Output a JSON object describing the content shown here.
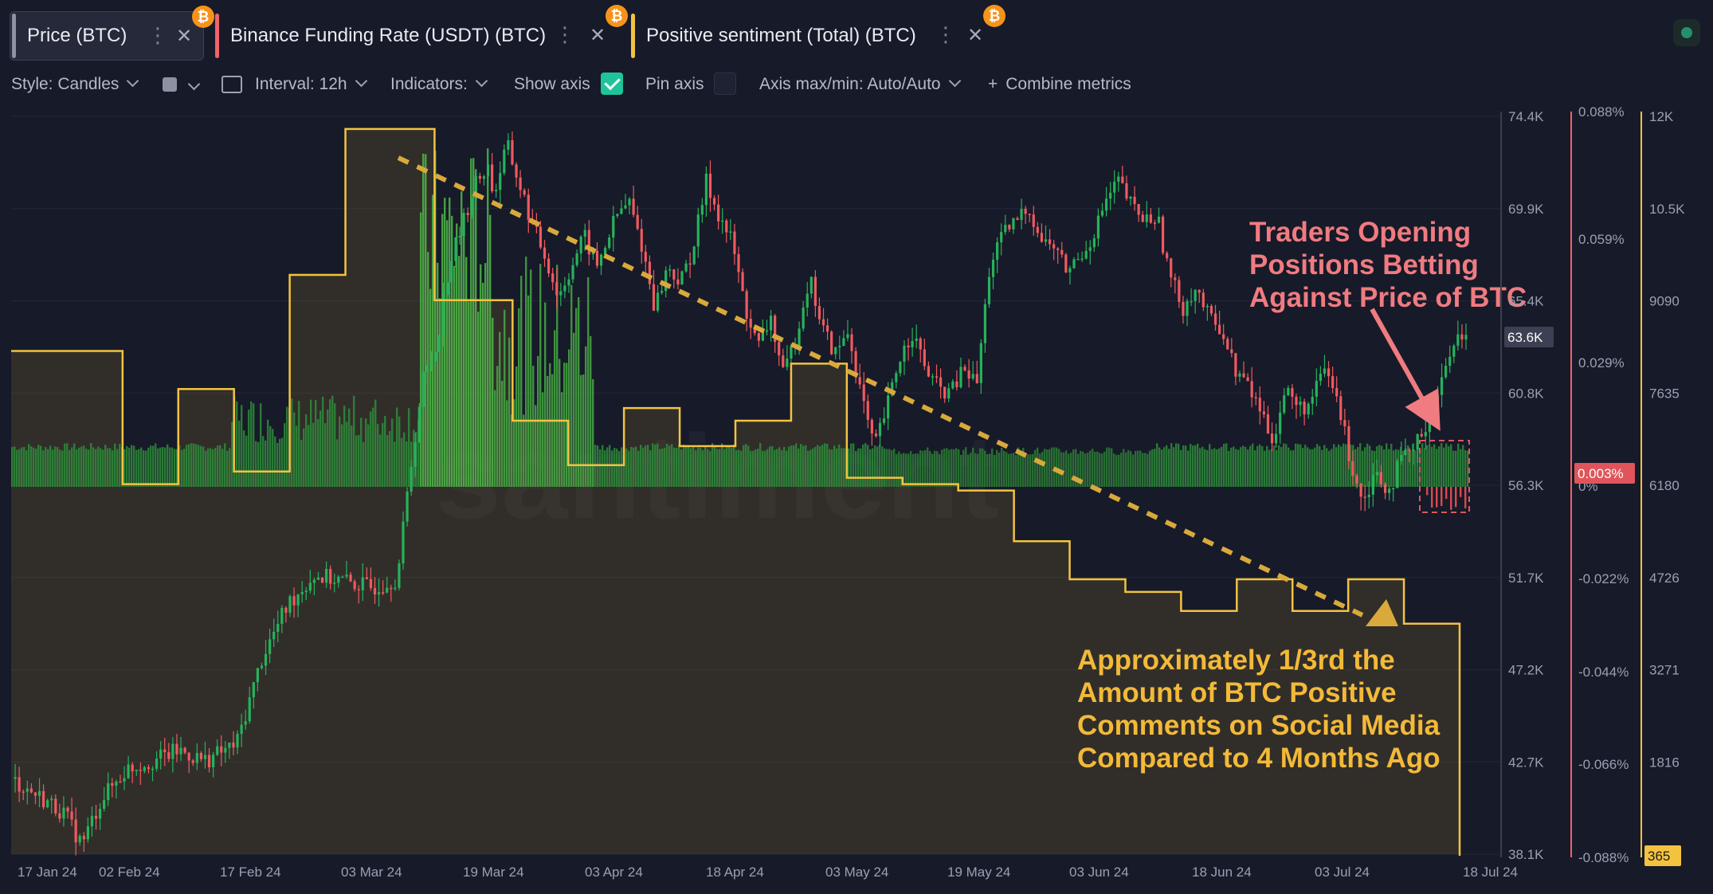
{
  "tabs": [
    {
      "label": "Price (BTC)",
      "color": "#8d91a2"
    },
    {
      "label": "Binance Funding Rate (USDT) (BTC)",
      "color": "#f0636a"
    },
    {
      "label": "Positive sentiment (Total) (BTC)",
      "color": "#f3c340"
    }
  ],
  "toolbar": {
    "style": "Style: Candles",
    "interval": "Interval: 12h",
    "indicators": "Indicators:",
    "show_axis": "Show axis",
    "pin_axis": "Pin axis",
    "axis_range": "Axis max/min: Auto/Auto",
    "combine": "Combine metrics"
  },
  "watermark": "santiment",
  "colors": {
    "up": "#26b35a",
    "down": "#ef5a5f",
    "sentiment": "#f3c340",
    "funding": "#f0636a",
    "trend": "#d9a93b"
  },
  "chart_data": {
    "type": "line",
    "x_labels": [
      "17 Jan 24",
      "02 Feb 24",
      "17 Feb 24",
      "03 Mar 24",
      "19 Mar 24",
      "03 Apr 24",
      "18 Apr 24",
      "03 May 24",
      "19 May 24",
      "03 Jun 24",
      "18 Jun 24",
      "03 Jul 24",
      "18 Jul 24"
    ],
    "price_axis": {
      "ticks": [
        "74.4K",
        "69.9K",
        "65.4K",
        "60.8K",
        "56.3K",
        "51.7K",
        "47.2K",
        "42.7K",
        "38.1K"
      ],
      "min": 38100,
      "max": 74400,
      "current": "63.6K"
    },
    "funding_axis": {
      "ticks": [
        "0.088%",
        "0.059%",
        "0.029%",
        "0%",
        "-0.022%",
        "-0.044%",
        "-0.066%",
        "-0.088%"
      ],
      "current": "0.003%"
    },
    "sentiment_axis": {
      "ticks": [
        "12K",
        "10.5K",
        "9090",
        "7635",
        "6180",
        "4726",
        "3271",
        "1816"
      ],
      "current": "365",
      "min": 365,
      "max": 12000
    },
    "price_path": [
      [
        0,
        41800
      ],
      [
        4,
        41000
      ],
      [
        8,
        40200
      ],
      [
        11,
        38600
      ],
      [
        14,
        40800
      ],
      [
        18,
        42300
      ],
      [
        22,
        42700
      ],
      [
        26,
        43200
      ],
      [
        30,
        42700
      ],
      [
        35,
        43500
      ],
      [
        39,
        47800
      ],
      [
        43,
        50400
      ],
      [
        47,
        51800
      ],
      [
        51,
        51600
      ],
      [
        56,
        51200
      ],
      [
        60,
        51700
      ],
      [
        62,
        57000
      ],
      [
        64,
        61500
      ],
      [
        66,
        63000
      ],
      [
        68,
        67000
      ],
      [
        70,
        69000
      ],
      [
        72,
        71000
      ],
      [
        74,
        72000
      ],
      [
        75,
        70500
      ],
      [
        77,
        73000
      ],
      [
        79,
        71000
      ],
      [
        81,
        69000
      ],
      [
        83,
        67500
      ],
      [
        85,
        65500
      ],
      [
        87,
        67000
      ],
      [
        89,
        68500
      ],
      [
        91,
        67000
      ],
      [
        94,
        69500
      ],
      [
        96,
        70200
      ],
      [
        98,
        68000
      ],
      [
        100,
        65000
      ],
      [
        102,
        67000
      ],
      [
        104,
        66200
      ],
      [
        106,
        68000
      ],
      [
        108,
        71200
      ],
      [
        110,
        69500
      ],
      [
        112,
        68200
      ],
      [
        114,
        65000
      ],
      [
        116,
        63000
      ],
      [
        118,
        64500
      ],
      [
        120,
        61500
      ],
      [
        122,
        63800
      ],
      [
        124,
        66500
      ],
      [
        126,
        64000
      ],
      [
        128,
        62700
      ],
      [
        130,
        63800
      ],
      [
        132,
        60800
      ],
      [
        134,
        58000
      ],
      [
        136,
        60000
      ],
      [
        138,
        62500
      ],
      [
        140,
        63800
      ],
      [
        142,
        62000
      ],
      [
        144,
        61000
      ],
      [
        146,
        60800
      ],
      [
        148,
        62000
      ],
      [
        150,
        61200
      ],
      [
        152,
        67000
      ],
      [
        154,
        68500
      ],
      [
        156,
        69200
      ],
      [
        158,
        70000
      ],
      [
        160,
        68300
      ],
      [
        162,
        68000
      ],
      [
        164,
        66800
      ],
      [
        166,
        67500
      ],
      [
        168,
        68500
      ],
      [
        170,
        70200
      ],
      [
        172,
        71200
      ],
      [
        174,
        70000
      ],
      [
        176,
        69300
      ],
      [
        178,
        69500
      ],
      [
        180,
        66500
      ],
      [
        182,
        65000
      ],
      [
        184,
        66000
      ],
      [
        186,
        64500
      ],
      [
        188,
        64000
      ],
      [
        190,
        62000
      ],
      [
        192,
        61200
      ],
      [
        194,
        60000
      ],
      [
        196,
        58500
      ],
      [
        198,
        61000
      ],
      [
        200,
        60000
      ],
      [
        202,
        60300
      ],
      [
        204,
        62000
      ],
      [
        206,
        60500
      ],
      [
        208,
        57500
      ],
      [
        210,
        55500
      ],
      [
        212,
        57000
      ],
      [
        214,
        56000
      ],
      [
        216,
        57500
      ],
      [
        218,
        58000
      ],
      [
        220,
        59500
      ],
      [
        222,
        61000
      ],
      [
        224,
        63500
      ],
      [
        226,
        63600
      ]
    ],
    "sentiment_steps": [
      [
        0,
        8300
      ],
      [
        10,
        8300
      ],
      [
        10,
        6200
      ],
      [
        15,
        6200
      ],
      [
        15,
        7700
      ],
      [
        20,
        7700
      ],
      [
        20,
        6400
      ],
      [
        25,
        6400
      ],
      [
        25,
        9500
      ],
      [
        30,
        9500
      ],
      [
        30,
        11800
      ],
      [
        38,
        11800
      ],
      [
        38,
        9100
      ],
      [
        45,
        9100
      ],
      [
        45,
        7200
      ],
      [
        50,
        7200
      ],
      [
        50,
        6500
      ],
      [
        55,
        6500
      ],
      [
        55,
        7400
      ],
      [
        60,
        7400
      ],
      [
        60,
        6800
      ],
      [
        65,
        6800
      ],
      [
        65,
        7200
      ],
      [
        70,
        7200
      ],
      [
        70,
        8100
      ],
      [
        75,
        8100
      ],
      [
        75,
        6300
      ],
      [
        80,
        6300
      ],
      [
        80,
        6200
      ],
      [
        85,
        6200
      ],
      [
        85,
        6100
      ],
      [
        90,
        6100
      ],
      [
        90,
        5300
      ],
      [
        95,
        5300
      ],
      [
        95,
        4700
      ],
      [
        100,
        4700
      ],
      [
        100,
        4500
      ],
      [
        105,
        4500
      ],
      [
        105,
        4200
      ],
      [
        110,
        4200
      ],
      [
        110,
        4700
      ],
      [
        115,
        4700
      ],
      [
        115,
        4200
      ],
      [
        120,
        4200
      ],
      [
        120,
        4700
      ],
      [
        125,
        4700
      ],
      [
        125,
        4000
      ],
      [
        130,
        4000
      ],
      [
        130,
        365
      ]
    ],
    "funding_ops": {
      "positive": "0.0048%",
      "negative_region": "early Jul 24"
    }
  },
  "annotations": {
    "red": [
      "Traders Opening",
      "Positions Betting",
      "Against Price of BTC"
    ],
    "yellow": [
      "Approximately 1/3rd the",
      "Amount of BTC Positive",
      "Comments on Social Media",
      "Compared to 4 Months Ago"
    ]
  }
}
